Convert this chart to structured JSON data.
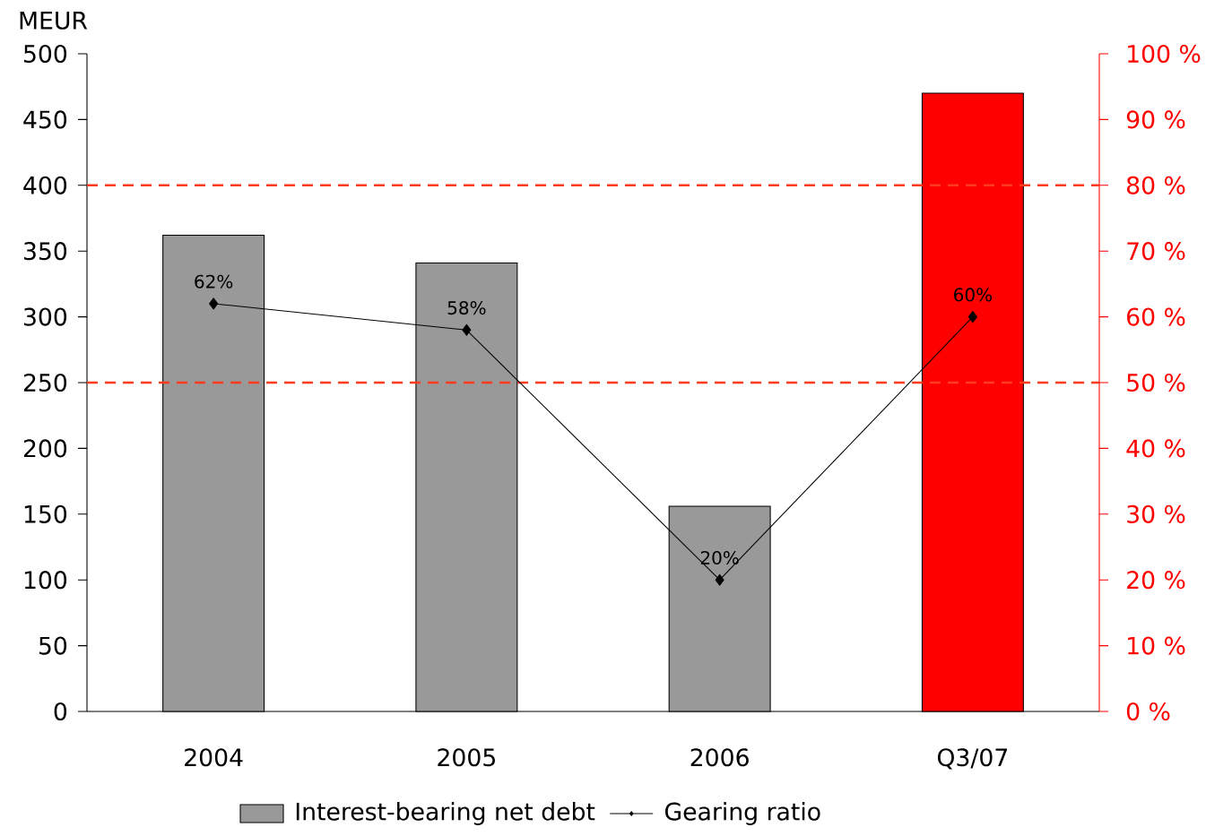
{
  "chart_data": {
    "type": "bar",
    "ylabel": "MEUR",
    "categories": [
      "2004",
      "2005",
      "2006",
      "Q3/07"
    ],
    "series": [
      {
        "name": "Interest-bearing net debt",
        "values": [
          362,
          341,
          156,
          470
        ],
        "colors": [
          "#999999",
          "#999999",
          "#999999",
          "#ff0000"
        ]
      },
      {
        "name": "Gearing ratio",
        "type": "line",
        "axis": "y2",
        "color": "#000000",
        "values": [
          62,
          58,
          20,
          60
        ],
        "value_labels": [
          "62%",
          "58%",
          "20%",
          "60%"
        ]
      }
    ],
    "ylim": [
      0,
      500
    ],
    "yticks": [
      0,
      50,
      100,
      150,
      200,
      250,
      300,
      350,
      400,
      450,
      500
    ],
    "y2lim": [
      0,
      100
    ],
    "y2ticks": [
      {
        "value": 0,
        "label": "0 %"
      },
      {
        "value": 10,
        "label": "10 %"
      },
      {
        "value": 20,
        "label": "20 %"
      },
      {
        "value": 30,
        "label": "30 %"
      },
      {
        "value": 40,
        "label": "40 %"
      },
      {
        "value": 50,
        "label": "50 %"
      },
      {
        "value": 60,
        "label": "60 %"
      },
      {
        "value": 70,
        "label": "70 %"
      },
      {
        "value": 80,
        "label": "80 %"
      },
      {
        "value": 90,
        "label": "90 %"
      },
      {
        "value": 100,
        "label": "100 %"
      }
    ],
    "ref_lines": [
      {
        "axis": "y2",
        "value": 80,
        "color": "#ff3b1f",
        "line_style": "dashed"
      },
      {
        "axis": "y2",
        "value": 50,
        "color": "#ff3b1f",
        "line_style": "dashed"
      }
    ],
    "marker": "diamond",
    "line_style": "solid",
    "legend": "bottom"
  }
}
